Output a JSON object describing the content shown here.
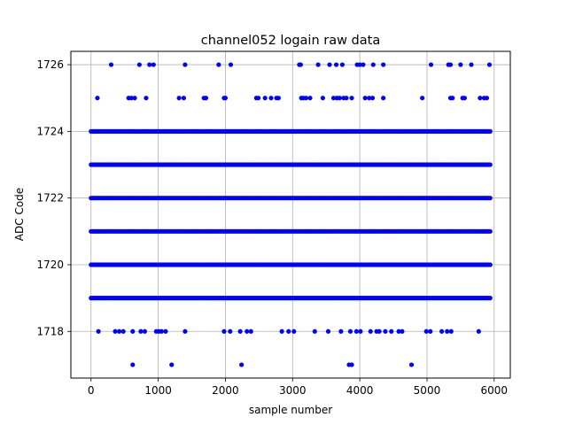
{
  "chart_data": {
    "type": "scatter",
    "title": "channel052 logain raw data",
    "xlabel": "sample number",
    "ylabel": "ADC Code",
    "xlim": [
      -300,
      6240
    ],
    "ylim": [
      1716.6,
      1726.4
    ],
    "x_ticks": [
      0,
      1000,
      2000,
      3000,
      4000,
      5000,
      6000
    ],
    "y_ticks": [
      1718,
      1720,
      1722,
      1724,
      1726
    ],
    "x_tick_labels": [
      "0",
      "1000",
      "2000",
      "3000",
      "4000",
      "5000",
      "6000"
    ],
    "y_tick_labels": [
      "1718",
      "1720",
      "1722",
      "1724",
      "1726"
    ],
    "grid": true,
    "marker_color": "#0000ff",
    "series": [
      {
        "dense_levels": [
          {
            "y": 1719,
            "x_range": [
              0,
              5940
            ]
          },
          {
            "y": 1720,
            "x_range": [
              0,
              5940
            ]
          },
          {
            "y": 1721,
            "x_range": [
              0,
              5940
            ]
          },
          {
            "y": 1722,
            "x_range": [
              0,
              5940
            ]
          },
          {
            "y": 1723,
            "x_range": [
              0,
              5940
            ]
          },
          {
            "y": 1724,
            "x_range": [
              0,
              5940
            ]
          }
        ],
        "sparse_points": [
          {
            "y": 1726,
            "x": [
              300,
              720,
              870,
              930,
              1400,
              1900,
              2080,
              3100,
              3120,
              3380,
              3550,
              3650,
              3740,
              3960,
              4000,
              4050,
              4200,
              4350,
              5060,
              5320,
              5350,
              5500,
              5660,
              5930
            ]
          },
          {
            "y": 1725,
            "x": [
              95,
              560,
              600,
              650,
              820,
              1310,
              1380,
              1680,
              1710,
              1980,
              2000,
              2460,
              2490,
              2590,
              2680,
              2760,
              2790,
              3130,
              3160,
              3200,
              3260,
              3450,
              3610,
              3660,
              3700,
              3760,
              3800,
              3880,
              4080,
              4140,
              4190,
              4350,
              4930,
              5350,
              5380,
              5530,
              5560,
              5790,
              5850,
              5890
            ]
          },
          {
            "y": 1718,
            "x": [
              110,
              360,
              420,
              480,
              620,
              740,
              800,
              970,
              1010,
              1050,
              1110,
              1400,
              1980,
              2070,
              2220,
              2320,
              2380,
              2840,
              2940,
              3020,
              3330,
              3530,
              3720,
              3860,
              3950,
              4010,
              4160,
              4250,
              4290,
              4380,
              4470,
              4580,
              4630,
              4990,
              5050,
              5220,
              5300,
              5360,
              5770
            ]
          },
          {
            "y": 1717,
            "x": [
              620,
              1200,
              2240,
              3840,
              3880,
              4770
            ]
          }
        ]
      }
    ]
  }
}
